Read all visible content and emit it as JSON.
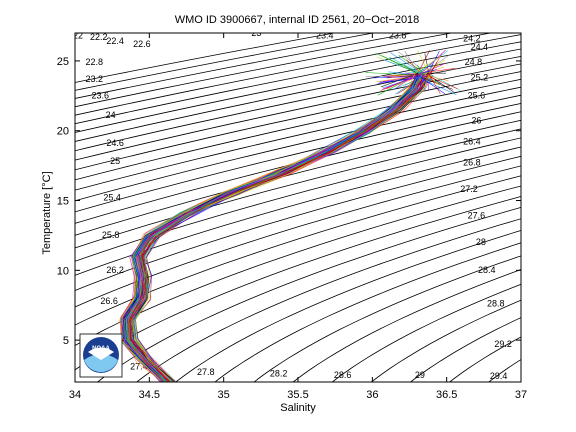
{
  "chart_data": {
    "type": "line",
    "title": "WMO ID 3900667, internal ID 2561, 20−Oct−2018",
    "xlabel": "Salinity",
    "ylabel": "Temperature [°C]",
    "xlim": [
      34,
      37
    ],
    "ylim": [
      2,
      27
    ],
    "xticks": [
      34,
      34.5,
      35,
      35.5,
      36,
      36.5,
      37
    ],
    "xtick_labels": [
      "34",
      "34.5",
      "35",
      "35.5",
      "36",
      "36.5",
      "37"
    ],
    "yticks": [
      5,
      10,
      15,
      20,
      25
    ],
    "ytick_labels": [
      "5",
      "10",
      "15",
      "20",
      "25"
    ],
    "grid": false,
    "legend": "none",
    "isopycnals": {
      "description_values": [
        22,
        22.2,
        22.4,
        22.6,
        22.8,
        23,
        23.2,
        23.4,
        23.6,
        23.8,
        24,
        24.2,
        24.4,
        24.6,
        24.8,
        25,
        25.2,
        25.4,
        25.6,
        25.8,
        26,
        26.2,
        26.4,
        26.6,
        26.8,
        27,
        27.2,
        27.4,
        27.6,
        27.8,
        28,
        28.2,
        28.4,
        28.6,
        28.8,
        29,
        29.2,
        29.4
      ],
      "label_positions_data_units": [
        {
          "text": "22",
          "s": 34.02,
          "t": 26.6
        },
        {
          "text": "22.2",
          "s": 34.16,
          "t": 26.5
        },
        {
          "text": "22.4",
          "s": 34.27,
          "t": 26.2
        },
        {
          "text": "22.6",
          "s": 34.45,
          "t": 26.0
        },
        {
          "text": "22.8",
          "s": 34.13,
          "t": 24.7
        },
        {
          "text": "23.2",
          "s": 34.13,
          "t": 23.5
        },
        {
          "text": "23.6",
          "s": 34.17,
          "t": 22.3
        },
        {
          "text": "24",
          "s": 34.24,
          "t": 20.9
        },
        {
          "text": "24.6",
          "s": 34.27,
          "t": 18.9
        },
        {
          "text": "25",
          "s": 34.27,
          "t": 17.6
        },
        {
          "text": "25.4",
          "s": 34.25,
          "t": 15.0
        },
        {
          "text": "25.8",
          "s": 34.24,
          "t": 12.3
        },
        {
          "text": "26.2",
          "s": 34.27,
          "t": 9.8
        },
        {
          "text": "26.6",
          "s": 34.23,
          "t": 7.6
        },
        {
          "text": "27",
          "s": 34.19,
          "t": 4.2
        },
        {
          "text": "27.4",
          "s": 34.43,
          "t": 2.9
        },
        {
          "text": "27.8",
          "s": 34.88,
          "t": 2.5
        },
        {
          "text": "28.2",
          "s": 35.37,
          "t": 2.4
        },
        {
          "text": "28.6",
          "s": 35.8,
          "t": 2.3
        },
        {
          "text": "29",
          "s": 36.32,
          "t": 2.3
        },
        {
          "text": "29.4",
          "s": 36.85,
          "t": 2.2
        },
        {
          "text": "29.2",
          "s": 36.88,
          "t": 4.5
        },
        {
          "text": "28.8",
          "s": 36.83,
          "t": 7.4
        },
        {
          "text": "28.4",
          "s": 36.77,
          "t": 9.8
        },
        {
          "text": "28",
          "s": 36.73,
          "t": 11.8
        },
        {
          "text": "27.6",
          "s": 36.7,
          "t": 13.7
        },
        {
          "text": "27.2",
          "s": 36.65,
          "t": 15.6
        },
        {
          "text": "26.8",
          "s": 36.67,
          "t": 17.5
        },
        {
          "text": "26.4",
          "s": 36.67,
          "t": 19.0
        },
        {
          "text": "26",
          "s": 36.7,
          "t": 20.5
        },
        {
          "text": "25.6",
          "s": 36.7,
          "t": 22.3
        },
        {
          "text": "25.2",
          "s": 36.72,
          "t": 23.6
        },
        {
          "text": "24.8",
          "s": 36.68,
          "t": 24.7
        },
        {
          "text": "24.4",
          "s": 36.72,
          "t": 25.8
        },
        {
          "text": "24.2",
          "s": 36.67,
          "t": 26.4
        },
        {
          "text": "23.8",
          "s": 36.17,
          "t": 26.6
        },
        {
          "text": "23.4",
          "s": 35.68,
          "t": 26.6
        },
        {
          "text": "23",
          "s": 35.22,
          "t": 26.8
        }
      ]
    },
    "profile_envelope": {
      "description": "many overlapping multicolored T-S profiles; median path",
      "points": [
        {
          "s": 34.63,
          "t": 2.0
        },
        {
          "s": 34.48,
          "t": 3.5
        },
        {
          "s": 34.37,
          "t": 5.0
        },
        {
          "s": 34.36,
          "t": 6.5
        },
        {
          "s": 34.45,
          "t": 8.0
        },
        {
          "s": 34.46,
          "t": 9.5
        },
        {
          "s": 34.43,
          "t": 11.0
        },
        {
          "s": 34.52,
          "t": 12.5
        },
        {
          "s": 34.75,
          "t": 14.0
        },
        {
          "s": 35.05,
          "t": 15.5
        },
        {
          "s": 35.4,
          "t": 17.0
        },
        {
          "s": 35.7,
          "t": 18.5
        },
        {
          "s": 35.95,
          "t": 20.0
        },
        {
          "s": 36.15,
          "t": 21.5
        },
        {
          "s": 36.3,
          "t": 23.0
        },
        {
          "s": 36.35,
          "t": 24.0
        }
      ],
      "spread_salinity": 0.05,
      "top_fan_temperature_range": [
        22.5,
        25.8
      ],
      "top_fan_salinity_range": [
        35.95,
        36.6
      ]
    },
    "series_colors": [
      "#ff0000",
      "#00aa00",
      "#0000ff",
      "#00cccc",
      "#cc00cc",
      "#cccc00",
      "#000000",
      "#ff8800",
      "#8800ff",
      "#0088ff",
      "#888888",
      "#aa0000"
    ],
    "logo_text": "NOAA"
  }
}
